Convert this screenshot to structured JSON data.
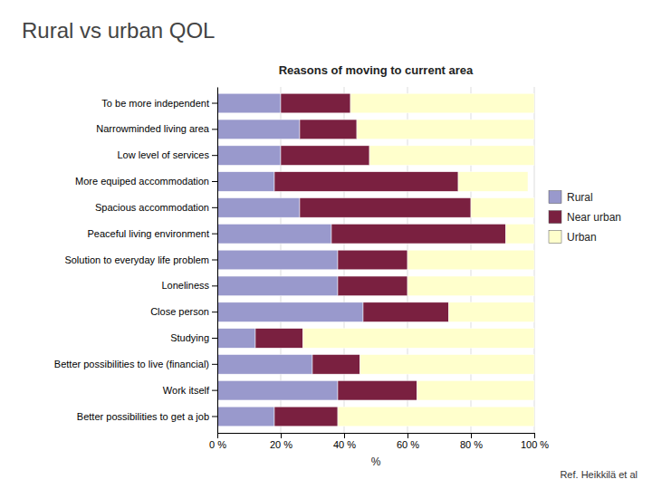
{
  "chart_data": {
    "type": "bar",
    "title": "Rural vs urban QOL",
    "subtitle": "Reasons of moving  to current area",
    "xlabel": "%",
    "annotations": [
      "Ref. Heikkilä et al"
    ],
    "orientation": "horizontal",
    "stacked": true,
    "grid": true,
    "legend": "right",
    "categories": [
      "To be more independent",
      "Narrowminded living area",
      "Low level of services",
      "More equiped accommodation",
      "Spacious accommodation",
      "Peaceful living environment",
      "Solution to everyday life problem",
      "Loneliness",
      "Close person",
      "Studying",
      "Better possibilities to live (financial)",
      "Work itself",
      "Better possibilities to get a job"
    ],
    "series": [
      {
        "name": "Rural",
        "color": "#9999cc",
        "values": [
          20,
          26,
          20,
          18,
          26,
          36,
          38,
          38,
          46,
          12,
          30,
          38,
          18
        ]
      },
      {
        "name": "Near urban",
        "color": "#7a2040",
        "values": [
          22,
          18,
          28,
          58,
          54,
          55,
          22,
          22,
          27,
          15,
          15,
          25,
          20
        ]
      },
      {
        "name": "Urban",
        "color": "#ffffcc",
        "values": [
          58,
          56,
          52,
          22,
          20,
          9,
          40,
          40,
          27,
          73,
          55,
          37,
          62
        ]
      }
    ],
    "xlim": [
      0,
      100
    ],
    "xticks": [
      {
        "value": 0,
        "label": "0 %"
      },
      {
        "value": 20,
        "label": "20 %"
      },
      {
        "value": 40,
        "label": "40 %"
      },
      {
        "value": 60,
        "label": "60 %"
      },
      {
        "value": 80,
        "label": "80 %"
      },
      {
        "value": 100,
        "label": "100 %"
      }
    ]
  }
}
